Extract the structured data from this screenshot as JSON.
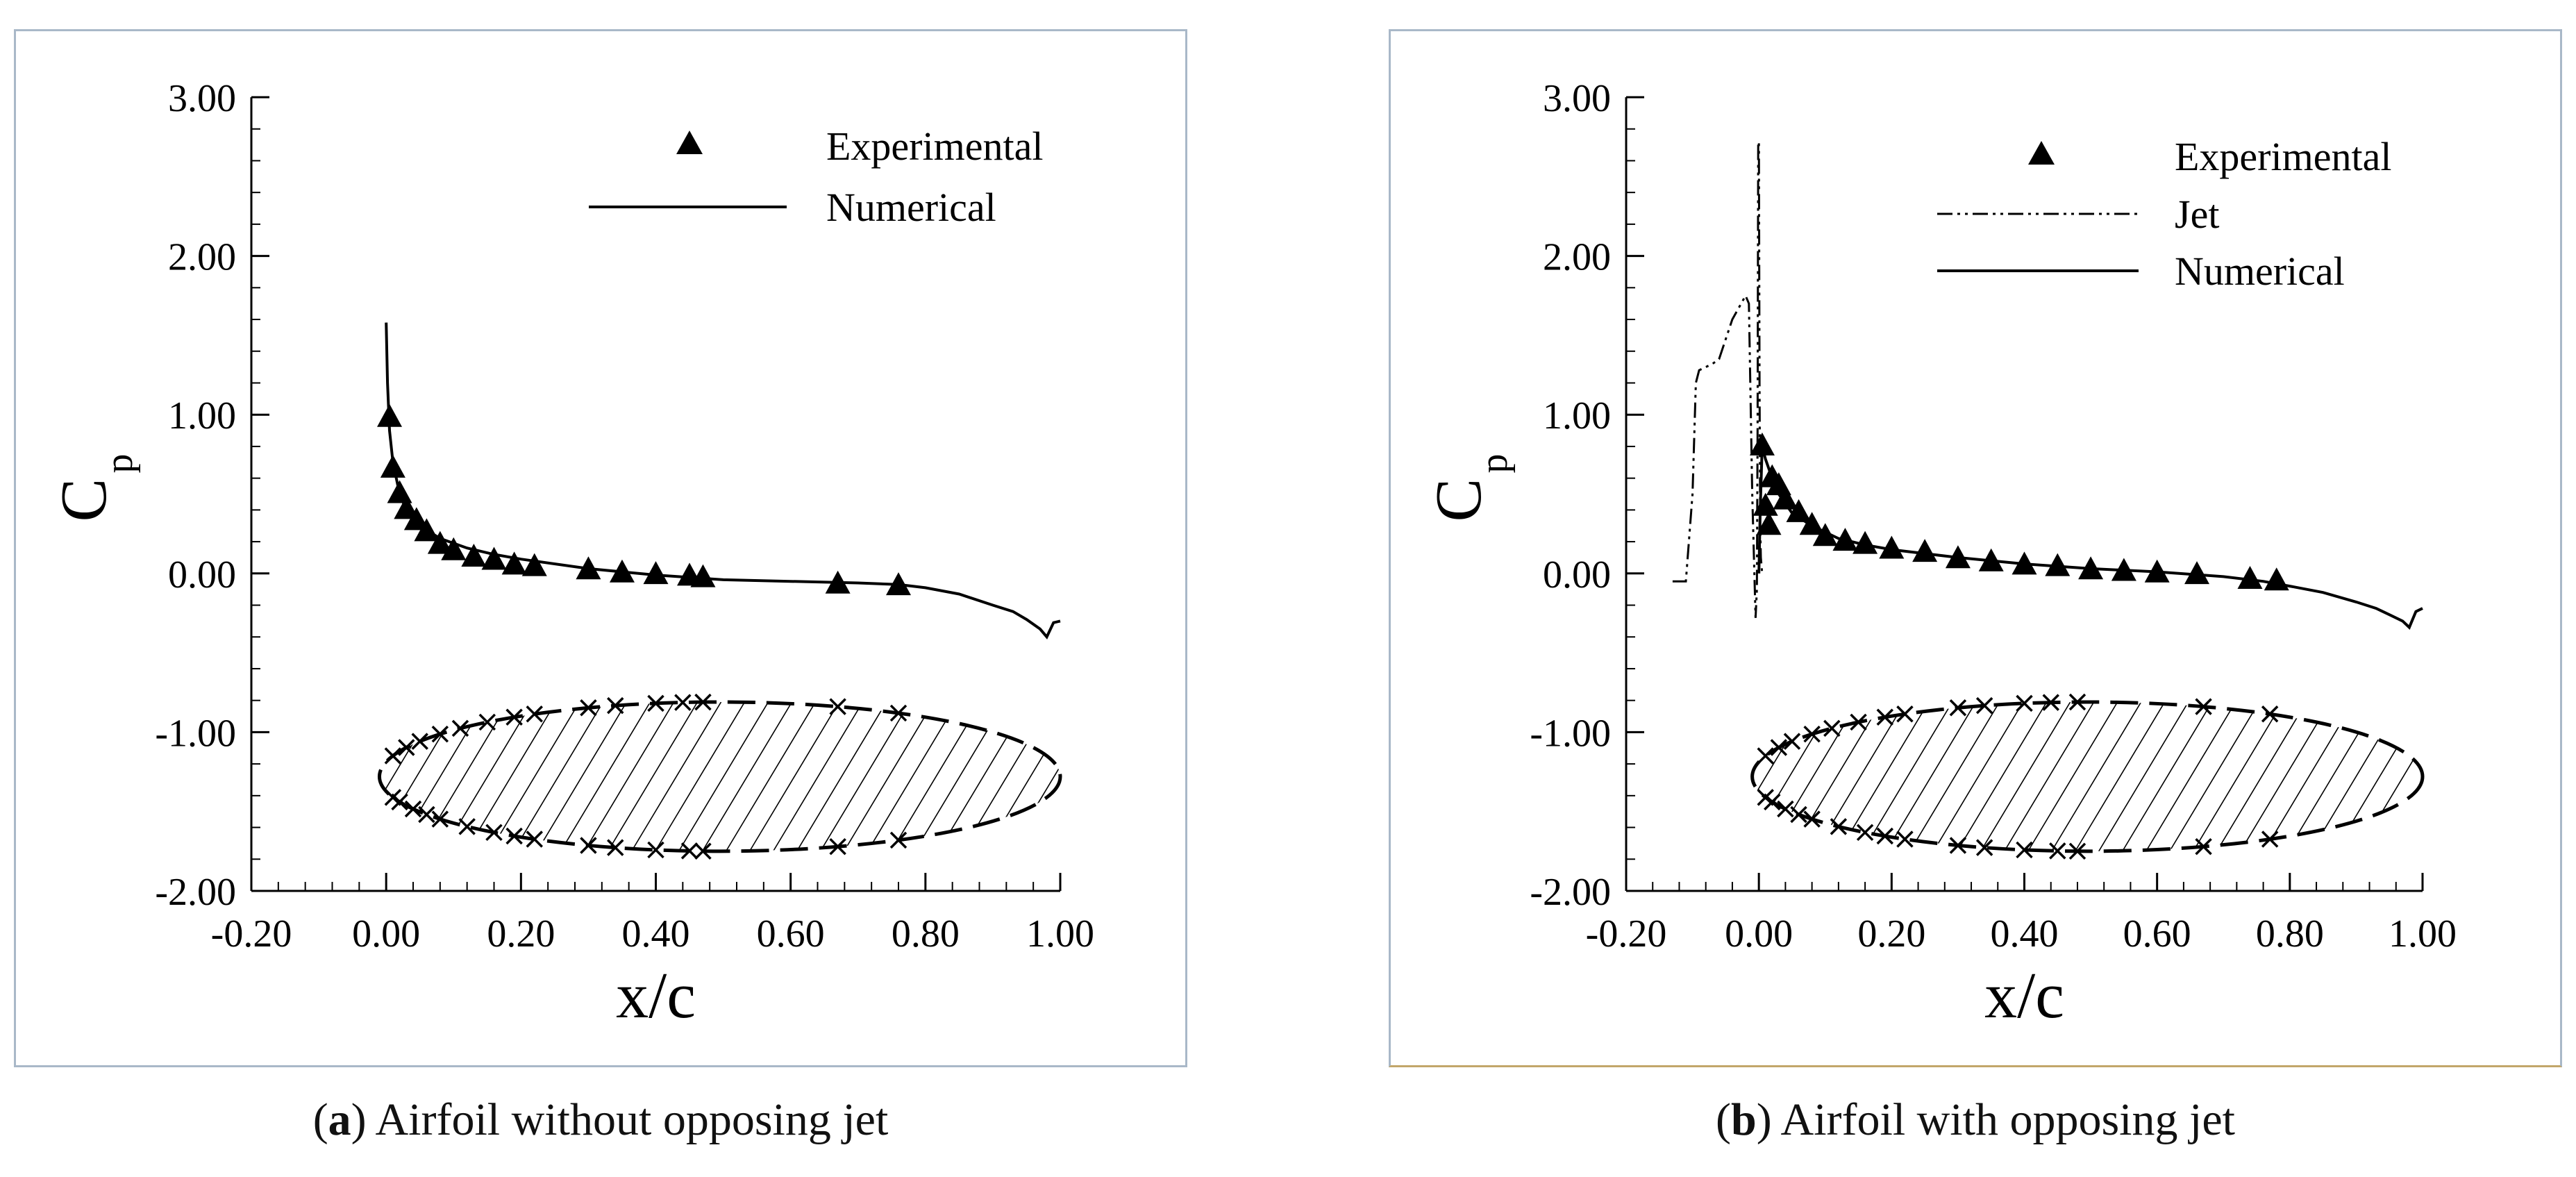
{
  "figure": {
    "panels": [
      {
        "caption_letter": "a",
        "caption_text": "Airfoil without opposing jet"
      },
      {
        "caption_letter": "b",
        "caption_text": "Airfoil with opposing jet"
      }
    ]
  },
  "chart_data": [
    {
      "type": "line",
      "title": "",
      "xlabel": "x/c",
      "ylabel": "C",
      "ylabel_subscript": "p",
      "xlim": [
        -0.2,
        1.0
      ],
      "ylim": [
        -2.0,
        3.0
      ],
      "x_ticks": [
        "-0.20",
        "0.00",
        "0.20",
        "0.40",
        "0.60",
        "0.80",
        "1.00"
      ],
      "y_ticks": [
        "3.00",
        "2.00",
        "1.00",
        "0.00",
        "-1.00",
        "-2.00"
      ],
      "legend_position": "top-right",
      "legend": [
        "Experimental",
        "Numerical"
      ],
      "series": [
        {
          "name": "Experimental",
          "marker": "triangle",
          "x": [
            0.005,
            0.01,
            0.02,
            0.03,
            0.045,
            0.06,
            0.08,
            0.1,
            0.13,
            0.16,
            0.19,
            0.22,
            0.3,
            0.35,
            0.4,
            0.45,
            0.47,
            0.67,
            0.76
          ],
          "y": [
            0.98,
            0.66,
            0.5,
            0.4,
            0.33,
            0.26,
            0.18,
            0.14,
            0.1,
            0.08,
            0.05,
            0.04,
            0.02,
            0.0,
            -0.01,
            -0.02,
            -0.03,
            -0.07,
            -0.08
          ]
        },
        {
          "name": "Numerical",
          "style": "solid",
          "x": [
            0.0,
            0.002,
            0.005,
            0.01,
            0.02,
            0.03,
            0.05,
            0.08,
            0.12,
            0.16,
            0.2,
            0.3,
            0.4,
            0.5,
            0.6,
            0.7,
            0.76,
            0.8,
            0.85,
            0.9,
            0.93,
            0.95,
            0.97,
            0.98,
            0.99,
            1.0
          ],
          "y": [
            1.58,
            1.2,
            0.9,
            0.7,
            0.5,
            0.4,
            0.3,
            0.22,
            0.16,
            0.12,
            0.09,
            0.03,
            -0.01,
            -0.04,
            -0.05,
            -0.06,
            -0.07,
            -0.09,
            -0.13,
            -0.2,
            -0.24,
            -0.29,
            -0.35,
            -0.4,
            -0.31,
            -0.3
          ]
        }
      ],
      "airfoil_sensors": {
        "upper_x": [
          0.01,
          0.03,
          0.05,
          0.08,
          0.11,
          0.15,
          0.19,
          0.22,
          0.3,
          0.34,
          0.4,
          0.44,
          0.47,
          0.67,
          0.76
        ],
        "lower_x": [
          0.01,
          0.02,
          0.04,
          0.06,
          0.08,
          0.12,
          0.16,
          0.19,
          0.22,
          0.3,
          0.34,
          0.4,
          0.45,
          0.47,
          0.67,
          0.76
        ]
      },
      "airfoil": {
        "y_center": -1.28,
        "half_thickness": 0.47,
        "x_start": -0.01,
        "x_end": 1.0
      }
    },
    {
      "type": "line",
      "title": "",
      "xlabel": "x/c",
      "ylabel": "C",
      "ylabel_subscript": "p",
      "xlim": [
        -0.2,
        1.0
      ],
      "ylim": [
        -2.0,
        3.0
      ],
      "x_ticks": [
        "-0.20",
        "0.00",
        "0.20",
        "0.40",
        "0.60",
        "0.80",
        "1.00"
      ],
      "y_ticks": [
        "3.00",
        "2.00",
        "1.00",
        "0.00",
        "-1.00",
        "-2.00"
      ],
      "legend_position": "top-right",
      "legend": [
        "Experimental",
        "Jet",
        "Numerical"
      ],
      "series": [
        {
          "name": "Experimental",
          "marker": "triangle",
          "x": [
            0.005,
            0.01,
            0.015,
            0.02,
            0.03,
            0.04,
            0.06,
            0.08,
            0.1,
            0.13,
            0.16,
            0.2,
            0.25,
            0.3,
            0.35,
            0.4,
            0.45,
            0.5,
            0.55,
            0.6,
            0.66,
            0.74,
            0.78
          ],
          "y": [
            0.8,
            0.42,
            0.3,
            0.6,
            0.55,
            0.46,
            0.38,
            0.3,
            0.23,
            0.2,
            0.18,
            0.15,
            0.13,
            0.09,
            0.07,
            0.05,
            0.04,
            0.02,
            0.01,
            0.0,
            -0.01,
            -0.04,
            -0.05
          ]
        },
        {
          "name": "Jet",
          "style": "dash-dot-dot",
          "x": [
            -0.13,
            -0.11,
            -0.1,
            -0.095,
            -0.09,
            -0.07,
            -0.06,
            -0.04,
            -0.02,
            -0.015,
            -0.01,
            -0.005,
            -0.003,
            -0.002,
            -0.001,
            0.0,
            0.001,
            0.002,
            0.003,
            0.005
          ],
          "y": [
            -0.05,
            -0.05,
            0.5,
            1.2,
            1.28,
            1.32,
            1.35,
            1.6,
            1.75,
            1.7,
            0.5,
            -0.28,
            -0.1,
            0.9,
            2.7,
            2.72,
            1.2,
            0.3,
            0.1,
            0.0
          ]
        },
        {
          "name": "Numerical",
          "style": "solid",
          "x": [
            0.0,
            0.002,
            0.005,
            0.01,
            0.02,
            0.03,
            0.05,
            0.08,
            0.12,
            0.16,
            0.2,
            0.3,
            0.4,
            0.5,
            0.6,
            0.7,
            0.76,
            0.8,
            0.85,
            0.9,
            0.93,
            0.95,
            0.97,
            0.98,
            0.99,
            1.0
          ],
          "y": [
            0.0,
            0.4,
            0.8,
            0.72,
            0.6,
            0.5,
            0.38,
            0.3,
            0.22,
            0.18,
            0.15,
            0.1,
            0.06,
            0.03,
            0.01,
            -0.02,
            -0.05,
            -0.08,
            -0.12,
            -0.18,
            -0.22,
            -0.26,
            -0.3,
            -0.34,
            -0.24,
            -0.22
          ]
        }
      ],
      "airfoil_sensors": {
        "upper_x": [
          0.01,
          0.03,
          0.05,
          0.08,
          0.11,
          0.15,
          0.19,
          0.22,
          0.3,
          0.34,
          0.4,
          0.44,
          0.48,
          0.67,
          0.77
        ],
        "lower_x": [
          0.01,
          0.02,
          0.04,
          0.06,
          0.08,
          0.12,
          0.16,
          0.19,
          0.22,
          0.3,
          0.34,
          0.4,
          0.45,
          0.48,
          0.67,
          0.77
        ]
      },
      "airfoil": {
        "y_center": -1.28,
        "half_thickness": 0.47,
        "x_start": -0.01,
        "x_end": 1.0
      }
    }
  ]
}
